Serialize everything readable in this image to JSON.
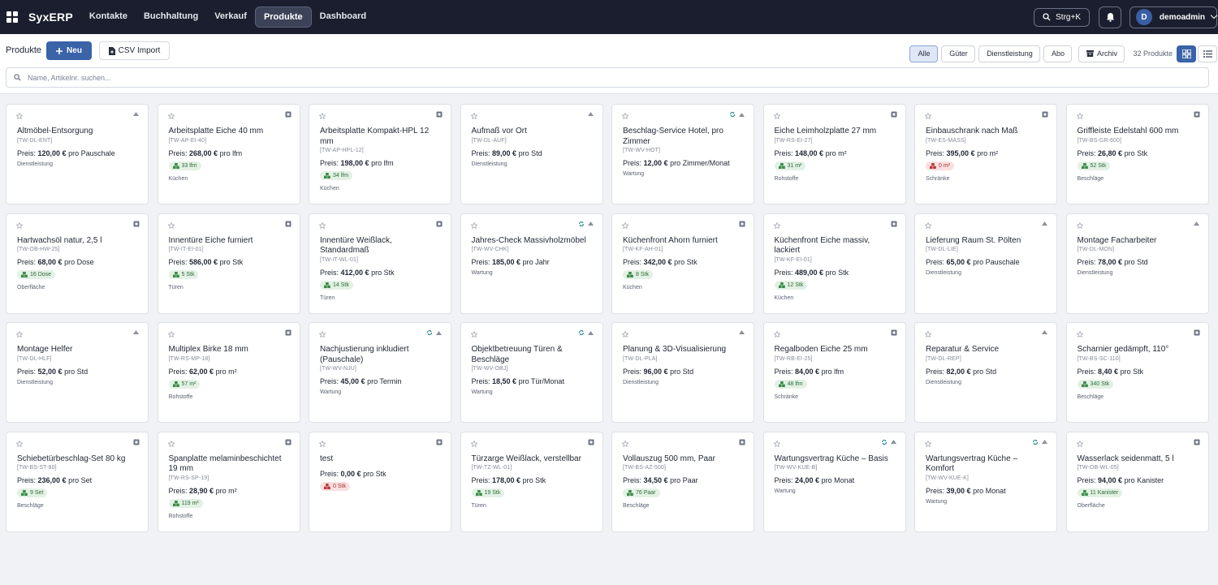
{
  "app": {
    "brand": "SyxERP"
  },
  "nav": [
    {
      "label": "Kontakte",
      "active": false
    },
    {
      "label": "Buchhaltung",
      "active": false
    },
    {
      "label": "Verkauf",
      "active": false
    },
    {
      "label": "Produkte",
      "active": true
    },
    {
      "label": "Dashboard",
      "active": false
    }
  ],
  "topbar": {
    "search_hint": "Strg+K",
    "user_initial": "D",
    "user_name": "demoadmin"
  },
  "toolbar": {
    "title": "Produkte",
    "new_label": "Neu",
    "csv_label": "CSV Import",
    "filters": [
      "Alle",
      "Güter",
      "Dienstleistung",
      "Abo"
    ],
    "active_filter": "Alle",
    "archive_label": "Archiv",
    "count_label": "32 Produkte",
    "search_placeholder": "Name, Artikelnr. suchen..."
  },
  "colors": {
    "primary": "#3a63a8",
    "nav_bg": "#1b1e2e",
    "stock_ok": "#2c6d36",
    "stock_low": "#a83232"
  },
  "products": [
    {
      "name": "Altmöbel-Entsorgung",
      "sku": "[TW-DL-ENT]",
      "price": "120,00 €",
      "unit": "pro Pauschale",
      "stock": null,
      "category": "Dienstleistung",
      "icon": "service-icon",
      "recurring": false
    },
    {
      "name": "Arbeitsplatte Eiche 40 mm",
      "sku": "[TW-AP-EI-40]",
      "price": "268,00 €",
      "unit": "pro lfm",
      "stock": "33 lfm",
      "stock_low": false,
      "category": "Küchen",
      "icon": "box-icon",
      "recurring": false
    },
    {
      "name": "Arbeitsplatte Kompakt-HPL 12 mm",
      "sku": "[TW-AP-HPL-12]",
      "price": "198,00 €",
      "unit": "pro lfm",
      "stock": "34 lfm",
      "stock_low": false,
      "category": "Küchen",
      "icon": "box-icon",
      "recurring": false
    },
    {
      "name": "Aufmaß vor Ort",
      "sku": "[TW-DL-AUF]",
      "price": "89,00 €",
      "unit": "pro Std",
      "stock": null,
      "category": "Dienstleistung",
      "icon": "service-icon",
      "recurring": false
    },
    {
      "name": "Beschlag-Service Hotel, pro Zimmer",
      "sku": "[TW-WV-HOT]",
      "price": "12,00 €",
      "unit": "pro Zimmer/Monat",
      "stock": null,
      "category": "Wartung",
      "icon": "service-icon",
      "recurring": true
    },
    {
      "name": "Eiche Leimholzplatte 27 mm",
      "sku": "[TW-RS-EI-27]",
      "price": "148,00 €",
      "unit": "pro m²",
      "stock": "31 m²",
      "stock_low": false,
      "category": "Rohstoffe",
      "icon": "box-icon",
      "recurring": false
    },
    {
      "name": "Einbauschrank nach Maß",
      "sku": "[TW-ES-MASS]",
      "price": "395,00 €",
      "unit": "pro m²",
      "stock": "0 m²",
      "stock_low": true,
      "category": "Schränke",
      "icon": "box-icon",
      "recurring": false
    },
    {
      "name": "Griffleiste Edelstahl 600 mm",
      "sku": "[TW-BS-GR-600]",
      "price": "26,80 €",
      "unit": "pro Stk",
      "stock": "52 Stk",
      "stock_low": false,
      "category": "Beschläge",
      "icon": "box-icon",
      "recurring": false
    },
    {
      "name": "Hartwachsöl natur, 2,5 l",
      "sku": "[TW-OB-HW-25]",
      "price": "68,00 €",
      "unit": "pro Dose",
      "stock": "16 Dose",
      "stock_low": false,
      "category": "Oberfläche",
      "icon": "box-icon",
      "recurring": false
    },
    {
      "name": "Innentüre Eiche furniert",
      "sku": "[TW-IT-EI-01]",
      "price": "586,00 €",
      "unit": "pro Stk",
      "stock": "5 Stk",
      "stock_low": false,
      "category": "Türen",
      "icon": "box-icon",
      "recurring": false
    },
    {
      "name": "Innentüre Weißlack, Standardmaß",
      "sku": "[TW-IT-WL-01]",
      "price": "412,00 €",
      "unit": "pro Stk",
      "stock": "14 Stk",
      "stock_low": false,
      "category": "Türen",
      "icon": "box-icon",
      "recurring": false
    },
    {
      "name": "Jahres-Check Massivholzmöbel",
      "sku": "[TW-WV-CHK]",
      "price": "185,00 €",
      "unit": "pro Jahr",
      "stock": null,
      "category": "Wartung",
      "icon": "service-icon",
      "recurring": true
    },
    {
      "name": "Küchenfront Ahorn furniert",
      "sku": "[TW-KF-AH-01]",
      "price": "342,00 €",
      "unit": "pro Stk",
      "stock": "8 Stk",
      "stock_low": false,
      "category": "Küchen",
      "icon": "box-icon",
      "recurring": false
    },
    {
      "name": "Küchenfront Eiche massiv, lackiert",
      "sku": "[TW-KF-EI-01]",
      "price": "489,00 €",
      "unit": "pro Stk",
      "stock": "12 Stk",
      "stock_low": false,
      "category": "Küchen",
      "icon": "box-icon",
      "recurring": false
    },
    {
      "name": "Lieferung Raum St. Pölten",
      "sku": "[TW-DL-LIE]",
      "price": "65,00 €",
      "unit": "pro Pauschale",
      "stock": null,
      "category": "Dienstleistung",
      "icon": "service-icon",
      "recurring": false
    },
    {
      "name": "Montage Facharbeiter",
      "sku": "[TW-DL-MON]",
      "price": "78,00 €",
      "unit": "pro Std",
      "stock": null,
      "category": "Dienstleistung",
      "icon": "service-icon",
      "recurring": false
    },
    {
      "name": "Montage Helfer",
      "sku": "[TW-DL-HLF]",
      "price": "52,00 €",
      "unit": "pro Std",
      "stock": null,
      "category": "Dienstleistung",
      "icon": "service-icon",
      "recurring": false
    },
    {
      "name": "Multiplex Birke 18 mm",
      "sku": "[TW-RS-MP-18]",
      "price": "62,00 €",
      "unit": "pro m²",
      "stock": "57 m²",
      "stock_low": false,
      "category": "Rohstoffe",
      "icon": "box-icon",
      "recurring": false
    },
    {
      "name": "Nachjustierung inkludiert (Pauschale)",
      "sku": "[TW-WV-NJU]",
      "price": "45,00 €",
      "unit": "pro Termin",
      "stock": null,
      "category": "Wartung",
      "icon": "service-icon",
      "recurring": true
    },
    {
      "name": "Objektbetreuung Türen & Beschläge",
      "sku": "[TW-WV-OBJ]",
      "price": "18,50 €",
      "unit": "pro Tür/Monat",
      "stock": null,
      "category": "Wartung",
      "icon": "service-icon",
      "recurring": true
    },
    {
      "name": "Planung & 3D-Visualisierung",
      "sku": "[TW-DL-PLA]",
      "price": "96,00 €",
      "unit": "pro Std",
      "stock": null,
      "category": "Dienstleistung",
      "icon": "service-icon",
      "recurring": false
    },
    {
      "name": "Regalboden Eiche 25 mm",
      "sku": "[TW-RB-EI-25]",
      "price": "84,00 €",
      "unit": "pro lfm",
      "stock": "48 lfm",
      "stock_low": false,
      "category": "Schränke",
      "icon": "box-icon",
      "recurring": false
    },
    {
      "name": "Reparatur & Service",
      "sku": "[TW-DL-REP]",
      "price": "82,00 €",
      "unit": "pro Std",
      "stock": null,
      "category": "Dienstleistung",
      "icon": "service-icon",
      "recurring": false
    },
    {
      "name": "Scharnier gedämpft, 110°",
      "sku": "[TW-BS-SC-110]",
      "price": "8,40 €",
      "unit": "pro Stk",
      "stock": "340 Stk",
      "stock_low": false,
      "category": "Beschläge",
      "icon": "box-icon",
      "recurring": false
    },
    {
      "name": "Schiebetürbeschlag-Set 80 kg",
      "sku": "[TW-BS-ST-80]",
      "price": "236,00 €",
      "unit": "pro Set",
      "stock": "9 Set",
      "stock_low": false,
      "category": "Beschläge",
      "icon": "box-icon",
      "recurring": false
    },
    {
      "name": "Spanplatte melaminbeschichtet 19 mm",
      "sku": "[TW-RS-SP-19]",
      "price": "28,90 €",
      "unit": "pro m²",
      "stock": "119 m²",
      "stock_low": false,
      "category": "Rohstoffe",
      "icon": "box-icon",
      "recurring": false
    },
    {
      "name": "test",
      "sku": "",
      "price": "0,00 €",
      "unit": "pro Stk",
      "stock": "0 Stk",
      "stock_low": true,
      "category": "",
      "icon": "box-icon",
      "recurring": false
    },
    {
      "name": "Türzarge Weißlack, verstellbar",
      "sku": "[TW-TZ-WL-01]",
      "price": "178,00 €",
      "unit": "pro Stk",
      "stock": "19 Stk",
      "stock_low": false,
      "category": "Türen",
      "icon": "box-icon",
      "recurring": false
    },
    {
      "name": "Vollauszug 500 mm, Paar",
      "sku": "[TW-BS-AZ-500]",
      "price": "34,50 €",
      "unit": "pro Paar",
      "stock": "76 Paar",
      "stock_low": false,
      "category": "Beschläge",
      "icon": "box-icon",
      "recurring": false
    },
    {
      "name": "Wartungsvertrag Küche – Basis",
      "sku": "[TW-WV-KUE-B]",
      "price": "24,00 €",
      "unit": "pro Monat",
      "stock": null,
      "category": "Wartung",
      "icon": "service-icon",
      "recurring": true
    },
    {
      "name": "Wartungsvertrag Küche – Komfort",
      "sku": "[TW-WV-KUE-K]",
      "price": "39,00 €",
      "unit": "pro Monat",
      "stock": null,
      "category": "Wartung",
      "icon": "service-icon",
      "recurring": true
    },
    {
      "name": "Wasserlack seidenmatt, 5 l",
      "sku": "[TW-OB-WL-05]",
      "price": "94,00 €",
      "unit": "pro Kanister",
      "stock": "11 Kanister",
      "stock_low": false,
      "category": "Oberfläche",
      "icon": "box-icon",
      "recurring": false
    }
  ],
  "price_prefix": "Preis:"
}
